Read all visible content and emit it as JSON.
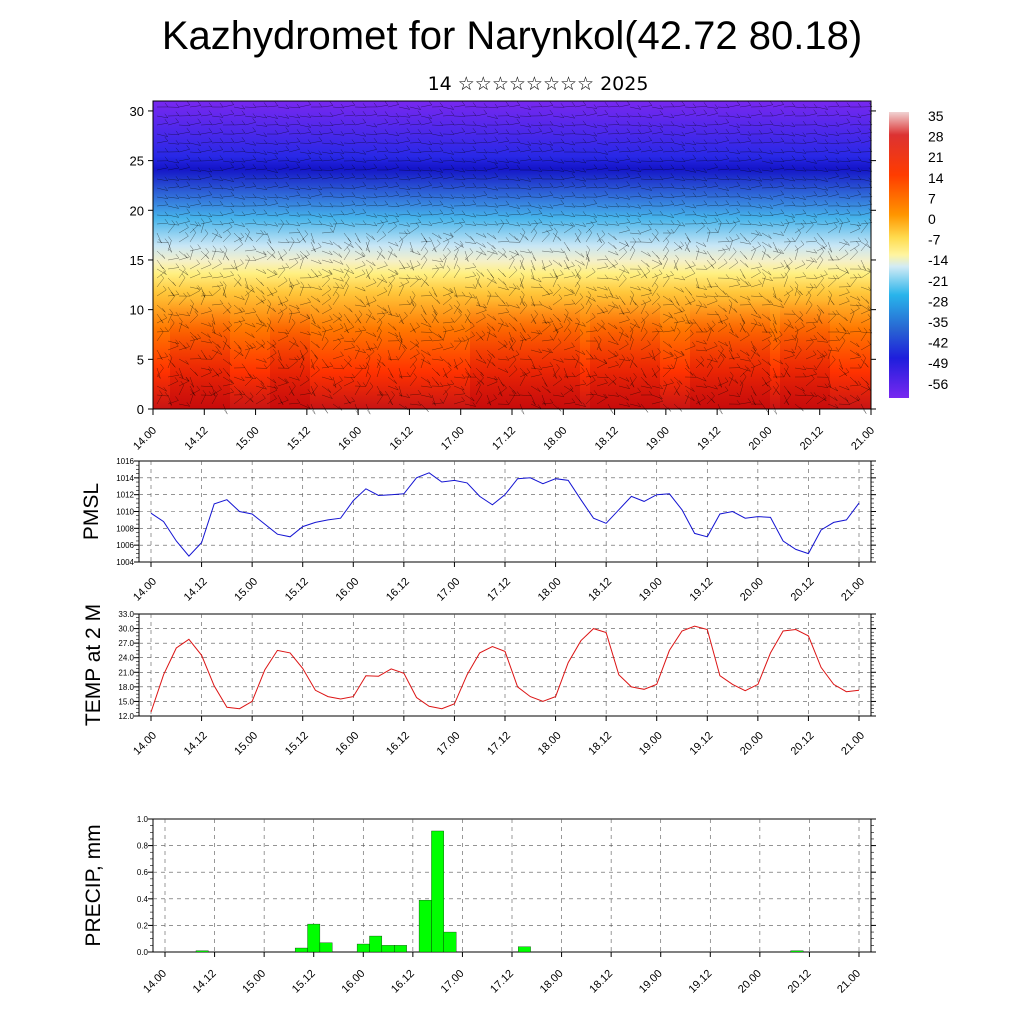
{
  "page": {
    "title": "Kazhydromet for Narynkol(42.72 80.18)",
    "subtitle": "14 ☆☆☆☆☆☆☆☆ 2025"
  },
  "colors": {
    "pmsl_line": "#1414d2",
    "temp_line": "#dc1414",
    "precip_bar": "#00ff00",
    "colorbar_stops": [
      "#e8c8c8",
      "#d21e1e",
      "#ff3c00",
      "#ff8c00",
      "#ffd24a",
      "#fff5a0",
      "#c8e6f5",
      "#28b4eb",
      "#2878d2",
      "#1e1edc",
      "#7828f0"
    ]
  },
  "time_ticks": [
    "14.00",
    "14.12",
    "15.00",
    "15.12",
    "16.00",
    "16.12",
    "17.00",
    "17.12",
    "18.00",
    "18.12",
    "19.00",
    "19.12",
    "20.00",
    "20.12",
    "21.00"
  ],
  "chart_data": [
    {
      "type": "heatmap",
      "title": "",
      "xlabel": "",
      "ylabel": "",
      "x_ticks": [
        "14.00",
        "14.12",
        "15.00",
        "15.12",
        "16.00",
        "16.12",
        "17.00",
        "17.12",
        "18.00",
        "18.12",
        "19.00",
        "19.12",
        "20.00",
        "20.12",
        "21.00"
      ],
      "y_ticks": [
        0,
        5,
        10,
        15,
        20,
        25,
        30
      ],
      "ylim": [
        0,
        31
      ],
      "colorbar_labels": [
        "35",
        "28",
        "21",
        "14",
        "7",
        "0",
        "-7",
        "-14",
        "-21",
        "-28",
        "-35",
        "-42",
        "-49",
        "-56"
      ],
      "overlay": "wind barbs"
    },
    {
      "type": "line",
      "title": "",
      "xlabel": "",
      "ylabel": "PMSL",
      "x_ticks": [
        "14.00",
        "14.12",
        "15.00",
        "15.12",
        "16.00",
        "16.12",
        "17.00",
        "17.12",
        "18.00",
        "18.12",
        "19.00",
        "19.12",
        "20.00",
        "20.12",
        "21.00"
      ],
      "y_ticks": [
        "1004",
        "1006",
        "1008",
        "1010",
        "1012",
        "1014",
        "1016"
      ],
      "ylim": [
        1004,
        1016
      ],
      "series": [
        {
          "x": [
            0,
            3,
            6,
            9,
            12,
            15,
            18,
            21,
            24,
            27,
            30,
            33,
            36,
            39,
            42,
            45,
            48,
            51,
            54,
            57,
            60,
            63,
            66,
            69,
            72,
            75,
            78,
            81,
            84,
            87,
            90,
            93,
            96,
            99,
            102,
            105,
            108,
            111,
            114,
            117,
            120,
            123,
            126,
            129,
            132,
            135,
            138,
            141,
            144,
            147,
            150,
            153,
            156,
            159,
            162,
            165,
            168
          ],
          "values": [
            1009.8,
            1008.8,
            1006.5,
            1004.7,
            1006.3,
            1010.9,
            1011.4,
            1010.0,
            1009.7,
            1008.5,
            1007.3,
            1007.0,
            1008.2,
            1008.7,
            1009.0,
            1009.2,
            1011.3,
            1012.7,
            1011.9,
            1012.0,
            1012.1,
            1014.0,
            1014.6,
            1013.5,
            1013.7,
            1013.4,
            1011.8,
            1010.8,
            1012.0,
            1013.9,
            1014.0,
            1013.3,
            1013.9,
            1013.7,
            1011.4,
            1009.2,
            1008.6,
            1010.2,
            1011.8,
            1011.2,
            1012.0,
            1012.1,
            1010.2,
            1007.4,
            1007.0,
            1009.7,
            1010.0,
            1009.2,
            1009.4,
            1009.3,
            1006.5,
            1005.5,
            1005.0,
            1007.8,
            1008.7,
            1009.0,
            1011.0
          ]
        }
      ]
    },
    {
      "type": "line",
      "title": "",
      "xlabel": "",
      "ylabel": "TEMP at 2 M",
      "x_ticks": [
        "14.00",
        "14.12",
        "15.00",
        "15.12",
        "16.00",
        "16.12",
        "17.00",
        "17.12",
        "18.00",
        "18.12",
        "19.00",
        "19.12",
        "20.00",
        "20.12",
        "21.00"
      ],
      "y_ticks": [
        "12.0",
        "15.0",
        "18.0",
        "21.0",
        "24.0",
        "27.0",
        "30.0",
        "33.0"
      ],
      "ylim": [
        12,
        33
      ],
      "series": [
        {
          "x": [
            0,
            3,
            6,
            9,
            12,
            15,
            18,
            21,
            24,
            27,
            30,
            33,
            36,
            39,
            42,
            45,
            48,
            51,
            54,
            57,
            60,
            63,
            66,
            69,
            72,
            75,
            78,
            81,
            84,
            87,
            90,
            93,
            96,
            99,
            102,
            105,
            108,
            111,
            114,
            117,
            120,
            123,
            126,
            129,
            132,
            135,
            138,
            141,
            144,
            147,
            150,
            153,
            156,
            159,
            162,
            165,
            168
          ],
          "values": [
            12.8,
            20.5,
            26.0,
            27.8,
            24.5,
            18.2,
            13.8,
            13.5,
            15.0,
            21.5,
            25.5,
            25.0,
            21.8,
            17.3,
            16.0,
            15.5,
            16.0,
            20.3,
            20.2,
            21.7,
            20.8,
            15.8,
            14.0,
            13.5,
            14.5,
            20.5,
            25.0,
            26.3,
            25.3,
            18.0,
            16.0,
            15.0,
            16.0,
            23.0,
            27.5,
            30.0,
            29.2,
            20.5,
            18.0,
            17.5,
            18.5,
            25.5,
            29.5,
            30.5,
            29.8,
            20.3,
            18.5,
            17.2,
            18.5,
            25.0,
            29.5,
            29.8,
            28.5,
            22.0,
            18.5,
            17.0,
            17.3
          ]
        }
      ]
    },
    {
      "type": "bar",
      "title": "",
      "xlabel": "",
      "ylabel": "PRECIP, mm",
      "x_ticks": [
        "14.00",
        "14.12",
        "15.00",
        "15.12",
        "16.00",
        "16.12",
        "17.00",
        "17.12",
        "18.00",
        "18.12",
        "19.00",
        "19.12",
        "20.00",
        "20.12",
        "21.00"
      ],
      "y_ticks": [
        "0.0",
        "0.2",
        "0.4",
        "0.6",
        "0.8",
        "1.0"
      ],
      "ylim": [
        0,
        1.0
      ],
      "bar_hours": [
        9,
        33,
        36,
        39,
        48,
        51,
        54,
        57,
        63,
        66,
        69,
        87,
        153
      ],
      "values": [
        0.01,
        0.03,
        0.21,
        0.07,
        0.06,
        0.12,
        0.05,
        0.05,
        0.39,
        0.91,
        0.15,
        0.04,
        0.01
      ]
    }
  ]
}
